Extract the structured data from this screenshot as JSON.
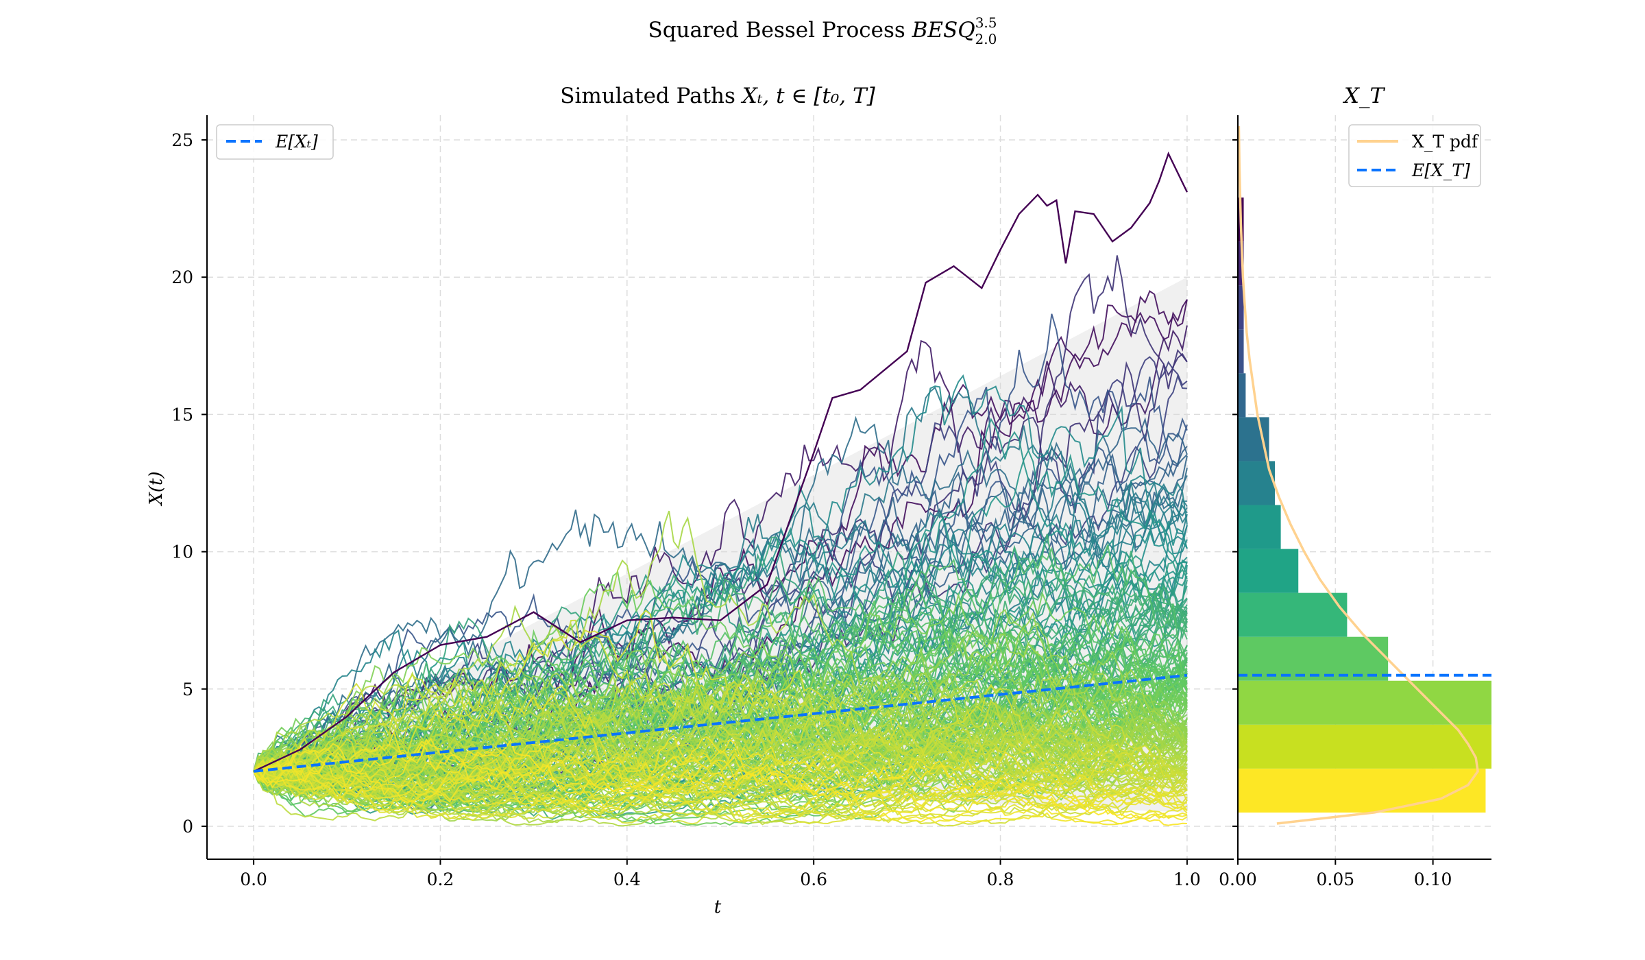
{
  "figure": {
    "title_text": "Squared Bessel Process ",
    "title_math": "BESQ",
    "title_sup": "3.5",
    "title_sub": "2.0"
  },
  "chart_data": [
    {
      "type": "line",
      "title_text": "Simulated Paths ",
      "title_math": "Xₜ, t ∈ [t₀, T]",
      "xlabel": "t",
      "ylabel": "X(t)",
      "xlim": [
        -0.05,
        1.05
      ],
      "ylim": [
        -1.2,
        25.9
      ],
      "x_ticks": [
        0.0,
        0.2,
        0.4,
        0.6,
        0.8,
        1.0
      ],
      "x_tick_labels": [
        "0.0",
        "0.2",
        "0.4",
        "0.6",
        "0.8",
        "1.0"
      ],
      "y_ticks": [
        0,
        5,
        10,
        15,
        20,
        25
      ],
      "y_tick_labels": [
        "0",
        "5",
        "10",
        "15",
        "20",
        "25"
      ],
      "grid": true,
      "legend_position": "upper-left",
      "legend": [
        {
          "label": "E[Xₜ]",
          "color": "#0a74ff",
          "style": "dashed"
        }
      ],
      "expectation_line": {
        "x": [
          0.0,
          1.0
        ],
        "y": [
          2.0,
          5.5
        ],
        "color": "#0a74ff"
      },
      "confidence_band": {
        "x": [
          0.0,
          1.0
        ],
        "upper": [
          2.0,
          20.0
        ],
        "lower": [
          2.0,
          0.5
        ],
        "color": "#d9d9d9"
      },
      "highlight_path": {
        "color": "#440154",
        "x": [
          0.0,
          0.05,
          0.1,
          0.15,
          0.2,
          0.25,
          0.3,
          0.35,
          0.4,
          0.45,
          0.5,
          0.55,
          0.6,
          0.62,
          0.65,
          0.7,
          0.72,
          0.75,
          0.78,
          0.8,
          0.82,
          0.84,
          0.85,
          0.86,
          0.87,
          0.88,
          0.9,
          0.92,
          0.94,
          0.96,
          0.97,
          0.98,
          1.0
        ],
        "y": [
          2.0,
          2.8,
          4.0,
          5.6,
          6.6,
          6.9,
          7.8,
          6.7,
          7.5,
          7.6,
          7.5,
          8.8,
          13.6,
          15.6,
          15.9,
          17.3,
          19.8,
          20.4,
          19.6,
          21.0,
          22.3,
          23.0,
          22.6,
          22.8,
          20.5,
          22.4,
          22.3,
          21.3,
          21.8,
          22.7,
          23.5,
          24.5,
          23.1
        ]
      },
      "path_colormap": [
        "#440154",
        "#3b528b",
        "#21918c",
        "#5ec962",
        "#fde725"
      ],
      "n_paths": 200,
      "n_steps": 200
    },
    {
      "type": "bar",
      "orientation": "horizontal",
      "title": "X_T",
      "xlim": [
        0.0,
        0.13
      ],
      "ylim": [
        -1.2,
        25.9
      ],
      "x_ticks": [
        0.0,
        0.05,
        0.1
      ],
      "x_tick_labels": [
        "0.00",
        "0.05",
        "0.10"
      ],
      "grid": true,
      "legend_position": "upper-right",
      "legend": [
        {
          "label": "X_T pdf",
          "color": "#ffd28f",
          "style": "solid"
        },
        {
          "label": "E[X_T]",
          "color": "#0a74ff",
          "style": "dashed"
        }
      ],
      "bins": [
        {
          "y0": 0.5,
          "y1": 2.1,
          "density": 0.127,
          "color": "#fde725"
        },
        {
          "y0": 2.1,
          "y1": 3.7,
          "density": 0.13,
          "color": "#c8e020"
        },
        {
          "y0": 3.7,
          "y1": 5.3,
          "density": 0.13,
          "color": "#90d743"
        },
        {
          "y0": 5.3,
          "y1": 6.9,
          "density": 0.077,
          "color": "#5ec962"
        },
        {
          "y0": 6.9,
          "y1": 8.5,
          "density": 0.056,
          "color": "#35b779"
        },
        {
          "y0": 8.5,
          "y1": 10.1,
          "density": 0.031,
          "color": "#20a486"
        },
        {
          "y0": 10.1,
          "y1": 11.7,
          "density": 0.022,
          "color": "#1f9a8a"
        },
        {
          "y0": 11.7,
          "y1": 13.3,
          "density": 0.019,
          "color": "#26828e"
        },
        {
          "y0": 13.3,
          "y1": 14.9,
          "density": 0.016,
          "color": "#2c728e"
        },
        {
          "y0": 14.9,
          "y1": 16.5,
          "density": 0.004,
          "color": "#31688e"
        },
        {
          "y0": 16.5,
          "y1": 18.1,
          "density": 0.003,
          "color": "#3b528b"
        },
        {
          "y0": 18.1,
          "y1": 19.7,
          "density": 0.003,
          "color": "#414487"
        },
        {
          "y0": 19.7,
          "y1": 21.3,
          "density": 0.003,
          "color": "#482878"
        },
        {
          "y0": 21.3,
          "y1": 22.9,
          "density": 0.003,
          "color": "#440154"
        }
      ],
      "pdf": {
        "y": [
          0.1,
          0.5,
          1.0,
          1.5,
          2.0,
          2.5,
          3.0,
          3.5,
          4.0,
          5.0,
          6.0,
          7.0,
          8.0,
          9.0,
          10.0,
          11.0,
          12.0,
          13.0,
          14.0,
          15.0,
          16.0,
          17.0,
          18.0,
          19.0,
          20.0,
          22.0,
          24.0,
          25.5
        ],
        "density": [
          0.02,
          0.07,
          0.104,
          0.118,
          0.123,
          0.122,
          0.118,
          0.113,
          0.106,
          0.092,
          0.078,
          0.064,
          0.052,
          0.042,
          0.034,
          0.027,
          0.021,
          0.016,
          0.013,
          0.01,
          0.008,
          0.006,
          0.0045,
          0.0035,
          0.0026,
          0.0015,
          0.0008,
          0.0005
        ]
      },
      "expectation": 5.5
    }
  ]
}
